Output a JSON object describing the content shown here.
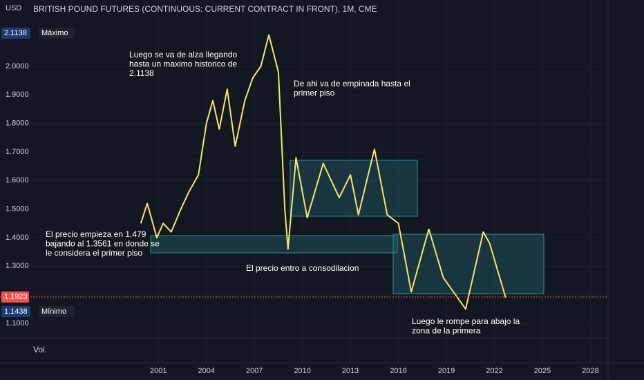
{
  "chart_data": {
    "type": "line",
    "title": "BRITISH POUND FUTURES (CONTINUOUS: CURRENT CONTRACT IN FRONT), 1M, CME",
    "currency": "USD",
    "volume_label": "Vol.",
    "xlim": [
      1991.1,
      2029.1
    ],
    "xticks": [
      2001,
      2004,
      2007,
      2010,
      2013,
      2016,
      2019,
      2022,
      2025,
      2028
    ],
    "ylim": [
      1.0467,
      2.2323
    ],
    "yticks": [
      {
        "value": 1.1,
        "label": "1.1000"
      },
      {
        "value": 1.2,
        "label": "1.2000"
      },
      {
        "value": 1.3,
        "label": "1.3000"
      },
      {
        "value": 1.4,
        "label": "1.4000"
      },
      {
        "value": 1.5,
        "label": "1.5000"
      },
      {
        "value": 1.6,
        "label": "1.6000"
      },
      {
        "value": 1.7,
        "label": "1.7000"
      },
      {
        "value": 1.8,
        "label": "1.8000"
      },
      {
        "value": 1.9,
        "label": "1.9000"
      },
      {
        "value": 2.0,
        "label": "2.0000"
      }
    ],
    "grid": true,
    "series": [
      {
        "color": "#f2e86b",
        "x": [
          1999.9,
          2000.3,
          2000.9,
          2001.3,
          2001.8,
          2002.4,
          2002.9,
          2003.5,
          2004.0,
          2004.4,
          2004.8,
          2005.3,
          2005.8,
          2006.4,
          2006.9,
          2007.4,
          2007.9,
          2008.5,
          2008.9,
          2009.1,
          2009.6,
          2010.3,
          2011.3,
          2012.3,
          2013.0,
          2013.5,
          2014.5,
          2015.3,
          2016.0,
          2016.8,
          2017.9,
          2018.8,
          2020.2,
          2021.3,
          2021.7,
          2022.7
        ],
        "values": [
          1.45,
          1.52,
          1.4,
          1.45,
          1.42,
          1.5,
          1.56,
          1.62,
          1.8,
          1.88,
          1.78,
          1.92,
          1.72,
          1.88,
          1.96,
          2.0,
          2.11,
          1.98,
          1.5,
          1.36,
          1.68,
          1.47,
          1.66,
          1.54,
          1.62,
          1.48,
          1.71,
          1.48,
          1.45,
          1.21,
          1.43,
          1.26,
          1.15,
          1.42,
          1.38,
          1.19
        ]
      }
    ],
    "max_marker": {
      "value": 2.1138,
      "label": "Máximo"
    },
    "min_marker": {
      "value": 1.1438,
      "label": "Mínimo"
    },
    "last_price": 1.1923,
    "annotations": [
      [
        "Luego se va de alza llegando",
        "hasta un maximo historico de",
        "2.1138"
      ],
      [
        "De ahi va de empinada hasta el",
        "primer piso"
      ],
      [
        "El precio empieza en 1.479",
        "bajando al 1.3561 en donde se",
        "le considera el primer piso"
      ],
      [
        "El precio entro a consodilacion"
      ],
      [
        "Luego le rompe para abajo la",
        "zona de la primera"
      ]
    ]
  }
}
